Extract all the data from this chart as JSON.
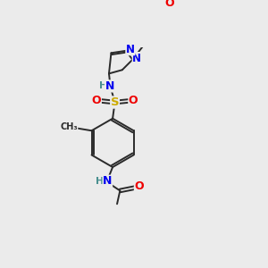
{
  "background_color": "#ebebeb",
  "figsize": [
    3.0,
    3.0
  ],
  "dpi": 100,
  "bond_color": "#2a2a2a",
  "bond_width": 1.4,
  "atom_colors": {
    "N": "#0000ee",
    "O": "#ee0000",
    "S": "#ccaa00",
    "H": "#4a9090",
    "C": "#2a2a2a"
  }
}
